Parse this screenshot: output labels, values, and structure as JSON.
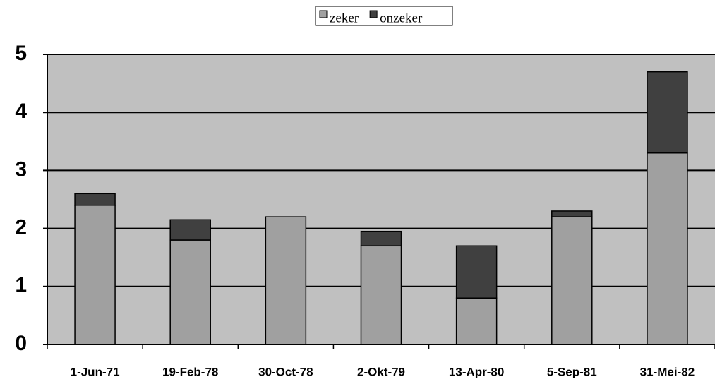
{
  "chart_data": {
    "type": "bar",
    "stacked": true,
    "categories": [
      "1-Jun-71",
      "19-Feb-78",
      "30-Oct-78",
      "2-Okt-79",
      "13-Apr-80",
      "5-Sep-81",
      "31-Mei-82"
    ],
    "series": [
      {
        "name": "zeker",
        "color": "#a0a0a0",
        "values": [
          2.4,
          1.8,
          2.2,
          1.7,
          0.8,
          2.2,
          3.3
        ]
      },
      {
        "name": "onzeker",
        "color": "#404040",
        "values": [
          0.2,
          0.35,
          0,
          0.25,
          0.9,
          0.1,
          1.4
        ]
      }
    ],
    "ylim": [
      0,
      5
    ],
    "yticks": [
      0,
      1,
      2,
      3,
      4,
      5
    ],
    "grid": true,
    "legend": "top"
  }
}
